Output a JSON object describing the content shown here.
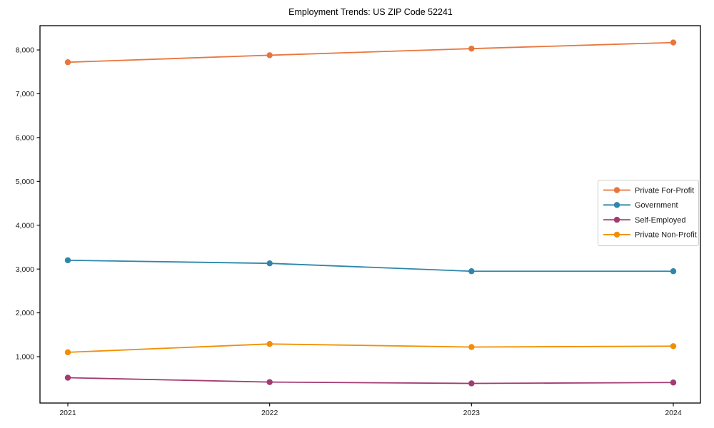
{
  "page": {
    "background": "#ffffff",
    "frame_color": "#000000",
    "text_color": "#1a1a1a"
  },
  "chart_data": {
    "type": "line",
    "title": "Employment Trends: US ZIP Code 52241",
    "xlabel": "",
    "ylabel": "",
    "x": [
      2021,
      2022,
      2023,
      2024
    ],
    "x_tick_labels": [
      "2021",
      "2022",
      "2023",
      "2024"
    ],
    "y_ticks": [
      {
        "value": 1000,
        "label": "1,000"
      },
      {
        "value": 2000,
        "label": "2,000"
      },
      {
        "value": 3000,
        "label": "3,000"
      },
      {
        "value": 4000,
        "label": "4,000"
      },
      {
        "value": 5000,
        "label": "5,000"
      },
      {
        "value": 6000,
        "label": "6,000"
      },
      {
        "value": 7000,
        "label": "7,000"
      },
      {
        "value": 8000,
        "label": "8,000"
      }
    ],
    "ylim": [
      -58,
      8554
    ],
    "grid": false,
    "marker": "circle",
    "legend_position": "center-right",
    "legend_border_color": "#cccccc",
    "series": [
      {
        "name": "Private For-Profit",
        "color": "#E8763C",
        "values": [
          7720,
          7880,
          8030,
          8170
        ]
      },
      {
        "name": "Government",
        "color": "#2E86AB",
        "values": [
          3200,
          3130,
          2950,
          2950
        ]
      },
      {
        "name": "Self-Employed",
        "color": "#A23B72",
        "values": [
          520,
          420,
          390,
          410
        ]
      },
      {
        "name": "Private Non-Profit",
        "color": "#F18F01",
        "values": [
          1100,
          1290,
          1220,
          1240
        ]
      }
    ]
  }
}
